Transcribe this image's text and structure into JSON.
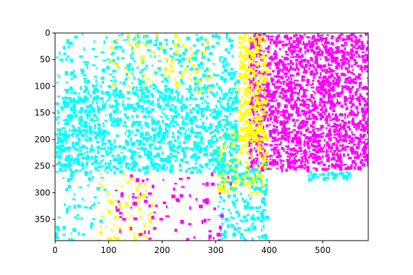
{
  "chart_data": {
    "type": "heatmap",
    "title": "",
    "xlabel": "",
    "ylabel": "",
    "xlim": [
      0,
      585
    ],
    "ylim": [
      390,
      0
    ],
    "x_ticks": [
      0,
      100,
      200,
      300,
      400,
      500
    ],
    "y_ticks": [
      0,
      50,
      100,
      150,
      200,
      250,
      300,
      350
    ],
    "x_tick_labels": [
      "0",
      "100",
      "200",
      "300",
      "400",
      "500"
    ],
    "y_tick_labels": [
      "0",
      "50",
      "100",
      "150",
      "200",
      "250",
      "300",
      "350"
    ],
    "grid": false,
    "palette": {
      "cyan": "#00ffff",
      "magenta": "#ff00ff",
      "yellow": "#ffff00",
      "background": "#ffffff"
    },
    "regions": [
      {
        "color": "magenta",
        "x": [
          360,
          585
        ],
        "y": [
          0,
          255
        ],
        "density": 0.62
      },
      {
        "color": "yellow",
        "x": [
          340,
          395
        ],
        "y": [
          0,
          200
        ],
        "density": 0.55
      },
      {
        "color": "yellow",
        "x": [
          300,
          395
        ],
        "y": [
          180,
          300
        ],
        "density": 0.35
      },
      {
        "color": "cyan",
        "x": [
          0,
          340
        ],
        "y": [
          100,
          260
        ],
        "density": 0.45
      },
      {
        "color": "cyan",
        "x": [
          80,
          340
        ],
        "y": [
          0,
          110
        ],
        "density": 0.22
      },
      {
        "color": "cyan",
        "x": [
          0,
          90
        ],
        "y": [
          0,
          390
        ],
        "density": 0.12
      },
      {
        "color": "cyan",
        "x": [
          300,
          395
        ],
        "y": [
          240,
          390
        ],
        "density": 0.25
      },
      {
        "color": "cyan",
        "x": [
          470,
          550
        ],
        "y": [
          258,
          270
        ],
        "density": 0.55
      },
      {
        "color": "yellow",
        "x": [
          100,
          300
        ],
        "y": [
          0,
          110
        ],
        "density": 0.08
      },
      {
        "color": "yellow",
        "x": [
          80,
          180
        ],
        "y": [
          260,
          390
        ],
        "density": 0.12
      },
      {
        "color": "magenta",
        "x": [
          110,
          330
        ],
        "y": [
          260,
          390
        ],
        "density": 0.08
      }
    ]
  }
}
